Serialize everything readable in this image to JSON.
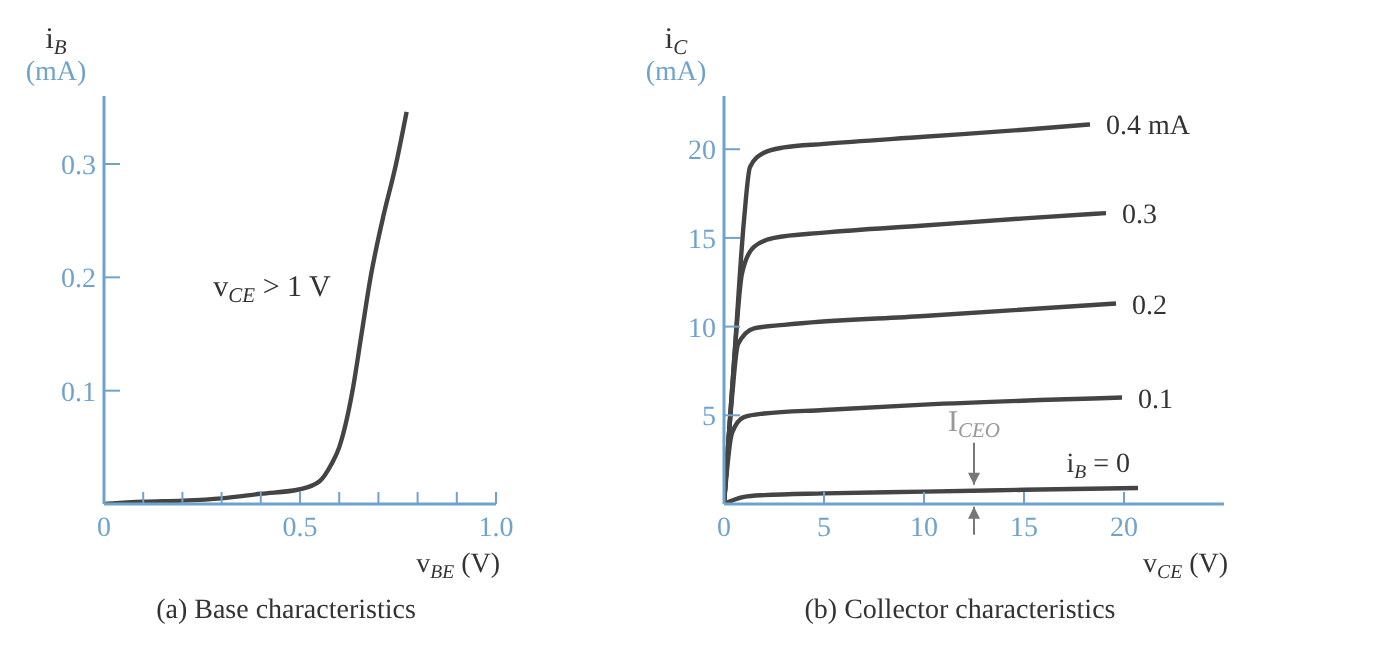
{
  "chart_data": [
    {
      "type": "line",
      "title": "(a) Base characteristics",
      "xlabel": "v$_{BE}$ (V)",
      "ylabel": "i$_{B}$ (mA)",
      "xlim": [
        0,
        1.0
      ],
      "ylim": [
        0,
        0.36
      ],
      "xticks": [
        0,
        {
          "value": 0.1,
          "label": null
        },
        {
          "value": 0.2,
          "label": null
        },
        {
          "value": 0.3,
          "label": null
        },
        {
          "value": 0.4,
          "label": null
        },
        0.5,
        {
          "value": 0.6,
          "label": null
        },
        {
          "value": 0.7,
          "label": null
        },
        {
          "value": 0.8,
          "label": null
        },
        {
          "value": 0.9,
          "label": null
        },
        {
          "value": 1.0,
          "label": "1.0"
        }
      ],
      "yticks": [
        0.1,
        0.2,
        0.3
      ],
      "grid": false,
      "legend": false,
      "marker": "none",
      "line_style": "solid",
      "annotations": [
        "v$_{CE}$ > 1 V"
      ],
      "series": [
        {
          "color": "#444444",
          "x": [
            0,
            0.1,
            0.2,
            0.3,
            0.4,
            0.5,
            0.55,
            0.58,
            0.6,
            0.634,
            0.657,
            0.68,
            0.71,
            0.745,
            0.772
          ],
          "values": [
            0,
            0.002,
            0.003,
            0.005,
            0.009,
            0.013,
            0.02,
            0.035,
            0.05,
            0.1,
            0.15,
            0.2,
            0.25,
            0.3,
            0.346
          ]
        }
      ]
    },
    {
      "type": "line",
      "title": "(b) Collector characteristics",
      "xlabel": "v$_{CE}$ (V)",
      "ylabel": "i$_{C}$ (mA)",
      "xlim": [
        0,
        25
      ],
      "ylim": [
        0,
        23
      ],
      "xticks": [
        0,
        5,
        10,
        15,
        20
      ],
      "yticks": [
        5,
        10,
        15,
        20
      ],
      "grid": false,
      "legend": false,
      "marker": "none",
      "line_style": "solid",
      "annotations": [
        {
          "text": "I$_{CEO}$",
          "x": 12.5,
          "y": 0.75
        }
      ],
      "series": [
        {
          "name": "0.4 mA",
          "color": "#444444",
          "x": [
            0,
            0.5,
            1.0,
            1.3,
            2,
            3,
            5,
            10,
            15,
            18.3
          ],
          "values": [
            0,
            8,
            16,
            19,
            19.8,
            20.1,
            20.3,
            20.7,
            21.1,
            21.4
          ]
        },
        {
          "name": "0.3",
          "color": "#444444",
          "x": [
            0,
            0.5,
            0.9,
            1.5,
            2.5,
            5,
            10,
            15,
            19.1
          ],
          "values": [
            0,
            8,
            13,
            14.5,
            15,
            15.3,
            15.7,
            16.1,
            16.4
          ]
        },
        {
          "name": "0.2",
          "color": "#444444",
          "x": [
            0,
            0.4,
            0.7,
            1.5,
            3,
            10,
            19.6
          ],
          "values": [
            0,
            6,
            9,
            9.9,
            10.1,
            10.6,
            11.3
          ]
        },
        {
          "name": "0.1",
          "color": "#444444",
          "x": [
            0,
            0.4,
            1,
            2,
            5,
            10,
            19.9
          ],
          "values": [
            0,
            4,
            4.9,
            5.1,
            5.3,
            5.6,
            6.0
          ]
        },
        {
          "name": "i$_{B}$ = 0",
          "color": "#444444",
          "x": [
            0,
            1,
            2,
            5,
            10,
            15,
            20.7
          ],
          "values": [
            0,
            0.4,
            0.5,
            0.6,
            0.7,
            0.8,
            0.9
          ]
        }
      ]
    }
  ]
}
